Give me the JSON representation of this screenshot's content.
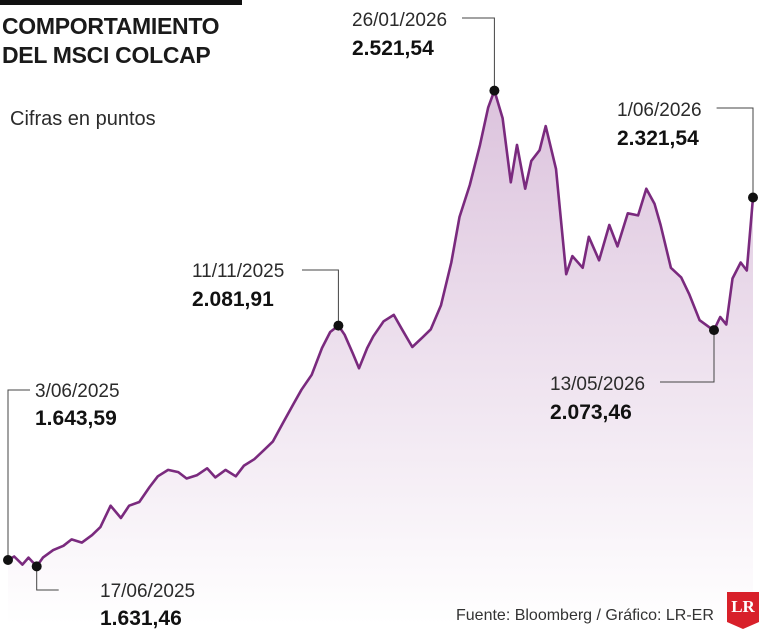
{
  "header": {
    "title_line1": "COMPORTAMIENTO",
    "title_line2": "DEL MSCI COLCAP",
    "subtitle": "Cifras en puntos"
  },
  "footer": {
    "source": "Fuente: Bloomberg / Gráfico: LR-ER",
    "logo_text": "LR"
  },
  "colors": {
    "line": "#7a2a7e",
    "fill_top": "#dcc3dd",
    "fill_bottom": "#ffffff",
    "marker": "#111111",
    "logo": "#d8202a"
  },
  "chart_data": {
    "type": "area",
    "ylim": [
      1550,
      2560
    ],
    "x_range": [
      "2025-06-03",
      "2026-06-01"
    ],
    "points": [
      [
        "2025-06-03",
        1643.59
      ],
      [
        "2025-06-06",
        1650
      ],
      [
        "2025-06-10",
        1635
      ],
      [
        "2025-06-13",
        1648
      ],
      [
        "2025-06-17",
        1631.46
      ],
      [
        "2025-06-20",
        1648
      ],
      [
        "2025-06-25",
        1662
      ],
      [
        "2025-06-30",
        1670
      ],
      [
        "2025-07-04",
        1682
      ],
      [
        "2025-07-09",
        1676
      ],
      [
        "2025-07-14",
        1690
      ],
      [
        "2025-07-18",
        1705
      ],
      [
        "2025-07-23",
        1745
      ],
      [
        "2025-07-28",
        1722
      ],
      [
        "2025-08-01",
        1745
      ],
      [
        "2025-08-06",
        1752
      ],
      [
        "2025-08-11",
        1780
      ],
      [
        "2025-08-15",
        1800
      ],
      [
        "2025-08-20",
        1812
      ],
      [
        "2025-08-25",
        1808
      ],
      [
        "2025-08-29",
        1796
      ],
      [
        "2025-09-03",
        1802
      ],
      [
        "2025-09-08",
        1815
      ],
      [
        "2025-09-12",
        1798
      ],
      [
        "2025-09-17",
        1812
      ],
      [
        "2025-09-22",
        1800
      ],
      [
        "2025-09-26",
        1820
      ],
      [
        "2025-10-01",
        1832
      ],
      [
        "2025-10-06",
        1850
      ],
      [
        "2025-10-10",
        1865
      ],
      [
        "2025-10-15",
        1900
      ],
      [
        "2025-10-20",
        1935
      ],
      [
        "2025-10-24",
        1962
      ],
      [
        "2025-10-29",
        1990
      ],
      [
        "2025-11-03",
        2040
      ],
      [
        "2025-11-07",
        2070
      ],
      [
        "2025-11-11",
        2081.91
      ],
      [
        "2025-11-14",
        2065
      ],
      [
        "2025-11-18",
        2030
      ],
      [
        "2025-11-21",
        2002
      ],
      [
        "2025-11-25",
        2040
      ],
      [
        "2025-11-28",
        2062
      ],
      [
        "2025-12-03",
        2090
      ],
      [
        "2025-12-08",
        2102
      ],
      [
        "2025-12-12",
        2075
      ],
      [
        "2025-12-17",
        2042
      ],
      [
        "2025-12-22",
        2060
      ],
      [
        "2025-12-26",
        2075
      ],
      [
        "2025-12-31",
        2120
      ],
      [
        "2026-01-05",
        2200
      ],
      [
        "2026-01-09",
        2285
      ],
      [
        "2026-01-14",
        2345
      ],
      [
        "2026-01-19",
        2420
      ],
      [
        "2026-01-23",
        2490
      ],
      [
        "2026-01-26",
        2521.54
      ],
      [
        "2026-01-30",
        2470
      ],
      [
        "2026-02-03",
        2350
      ],
      [
        "2026-02-06",
        2420
      ],
      [
        "2026-02-10",
        2338
      ],
      [
        "2026-02-13",
        2390
      ],
      [
        "2026-02-17",
        2410
      ],
      [
        "2026-02-20",
        2455
      ],
      [
        "2026-02-25",
        2375
      ],
      [
        "2026-03-02",
        2178
      ],
      [
        "2026-03-05",
        2212
      ],
      [
        "2026-03-10",
        2190
      ],
      [
        "2026-03-13",
        2248
      ],
      [
        "2026-03-18",
        2204
      ],
      [
        "2026-03-23",
        2270
      ],
      [
        "2026-03-27",
        2230
      ],
      [
        "2026-04-01",
        2292
      ],
      [
        "2026-04-06",
        2288
      ],
      [
        "2026-04-10",
        2338
      ],
      [
        "2026-04-14",
        2310
      ],
      [
        "2026-04-17",
        2270
      ],
      [
        "2026-04-22",
        2190
      ],
      [
        "2026-04-27",
        2172
      ],
      [
        "2026-05-01",
        2140
      ],
      [
        "2026-05-06",
        2092
      ],
      [
        "2026-05-11",
        2078
      ],
      [
        "2026-05-13",
        2073.46
      ],
      [
        "2026-05-16",
        2098
      ],
      [
        "2026-05-19",
        2084
      ],
      [
        "2026-05-22",
        2170
      ],
      [
        "2026-05-26",
        2200
      ],
      [
        "2026-05-29",
        2185
      ],
      [
        "2026-06-01",
        2321.54
      ]
    ],
    "annotations": [
      {
        "date": "2025-06-03",
        "label": "3/06/2025",
        "value_label": "1.643,59"
      },
      {
        "date": "2025-06-17",
        "label": "17/06/2025",
        "value_label": "1.631,46"
      },
      {
        "date": "2025-11-11",
        "label": "11/11/2025",
        "value_label": "2.081,91"
      },
      {
        "date": "2026-01-26",
        "label": "26/01/2026",
        "value_label": "2.521,54"
      },
      {
        "date": "2026-05-13",
        "label": "13/05/2026",
        "value_label": "2.073,46"
      },
      {
        "date": "2026-06-01",
        "label": "1/06/2026",
        "value_label": "2.321,54"
      }
    ]
  }
}
